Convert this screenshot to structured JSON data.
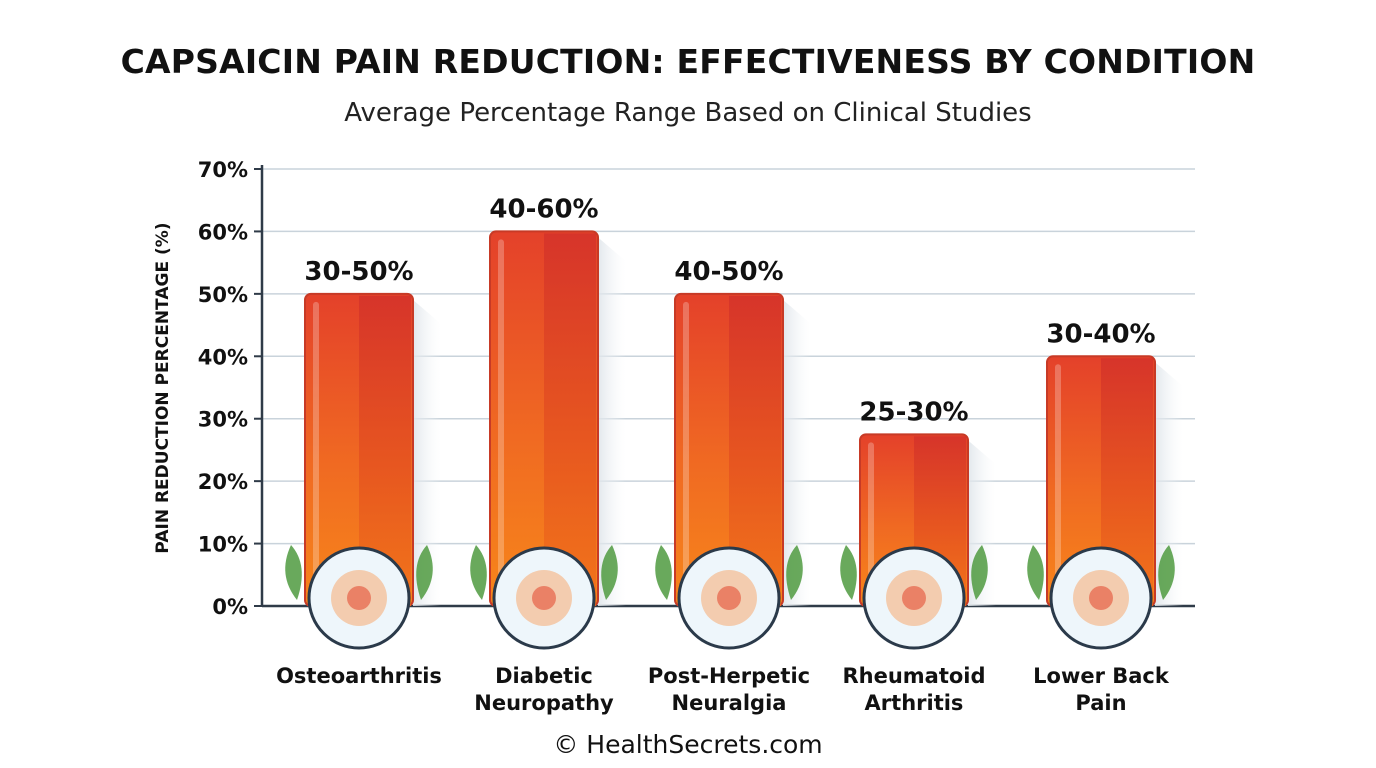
{
  "chart_data": {
    "type": "bar",
    "title": "CAPSAICIN PAIN REDUCTION: EFFECTIVENESS BY CONDITION",
    "subtitle": "Average Percentage Range Based on Clinical Studies",
    "ylabel": "PAIN REDUCTION PERCENTAGE (%)",
    "xlabel": "",
    "ylim": [
      0,
      70
    ],
    "yticks": [
      0,
      10,
      20,
      30,
      40,
      50,
      60,
      70
    ],
    "ytick_labels": [
      "0%",
      "10%",
      "20%",
      "30%",
      "40%",
      "50%",
      "60%",
      "70%"
    ],
    "grid": true,
    "categories": [
      "Osteoarthritis",
      "Diabetic Neuropathy",
      "Post-Herpetic Neuralgia",
      "Rheumatoid Arthritis",
      "Lower Back Pain"
    ],
    "category_lines": [
      [
        "Osteoarthritis"
      ],
      [
        "Diabetic",
        "Neuropathy"
      ],
      [
        "Post-Herpetic",
        "Neuralgia"
      ],
      [
        "Rheumatoid",
        "Arthritis"
      ],
      [
        "Lower Back",
        "Pain"
      ]
    ],
    "values": [
      50,
      60,
      50,
      27.5,
      40
    ],
    "value_labels": [
      "30-50%",
      "40-60%",
      "40-50%",
      "25-30%",
      "30-40%"
    ],
    "icons": [
      "knee-joint-icon",
      "foot-nerve-icon",
      "skin-nerve-icon",
      "hand-joints-icon",
      "spine-pain-icon"
    ],
    "colors": {
      "bar_top": "#e8442c",
      "bar_bottom": "#f57a1c",
      "bar_edge": "#c73a26",
      "grid": "#c9d3db",
      "axis": "#2f3b48"
    }
  },
  "footer": {
    "copyright": "© HealthSecrets.com"
  }
}
